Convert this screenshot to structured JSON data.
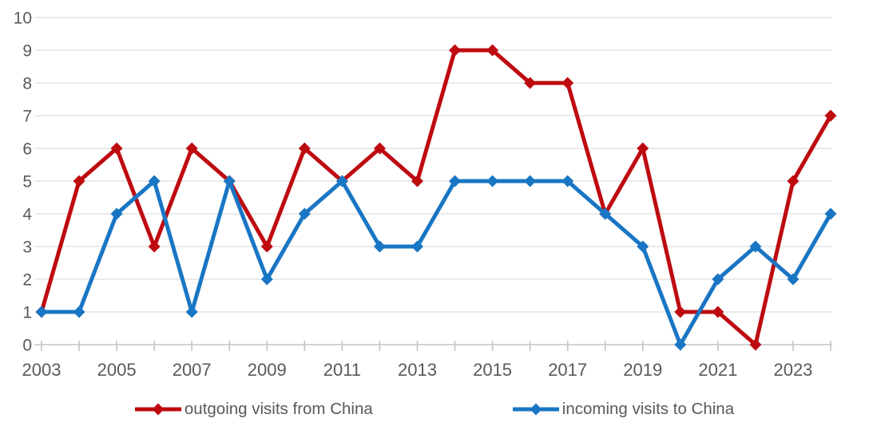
{
  "chart_data": {
    "type": "line",
    "title": "",
    "xlabel": "",
    "ylabel": "",
    "x": [
      2003,
      2004,
      2005,
      2006,
      2007,
      2008,
      2009,
      2010,
      2011,
      2012,
      2013,
      2014,
      2015,
      2016,
      2017,
      2018,
      2019,
      2020,
      2021,
      2022,
      2023,
      2024
    ],
    "x_tick_labels": [
      "2003",
      "2005",
      "2007",
      "2009",
      "2011",
      "2013",
      "2015",
      "2017",
      "2019",
      "2021",
      "2023"
    ],
    "y_ticks": [
      0,
      1,
      2,
      3,
      4,
      5,
      6,
      7,
      8,
      9,
      10
    ],
    "ylim": [
      0,
      10
    ],
    "grid": "horizontal",
    "legend_position": "bottom",
    "series": [
      {
        "name": "outgoing visits from China",
        "color": "#BE0B10",
        "marker": "diamond",
        "values": [
          1,
          5,
          6,
          3,
          6,
          5,
          3,
          6,
          5,
          6,
          5,
          9,
          9,
          8,
          8,
          4,
          6,
          1,
          1,
          0,
          5,
          7
        ]
      },
      {
        "name": "incoming visits to China",
        "color": "#1976C4",
        "marker": "diamond",
        "values": [
          1,
          1,
          4,
          5,
          1,
          5,
          2,
          4,
          5,
          3,
          3,
          5,
          5,
          5,
          5,
          4,
          3,
          0,
          2,
          3,
          2,
          4
        ]
      }
    ]
  },
  "colors": {
    "background": "#FFFFFF",
    "gridline": "#E4E4E4",
    "axis_line": "#C3C3C3",
    "tick_label": "#595959",
    "legend_text": "#595959"
  }
}
